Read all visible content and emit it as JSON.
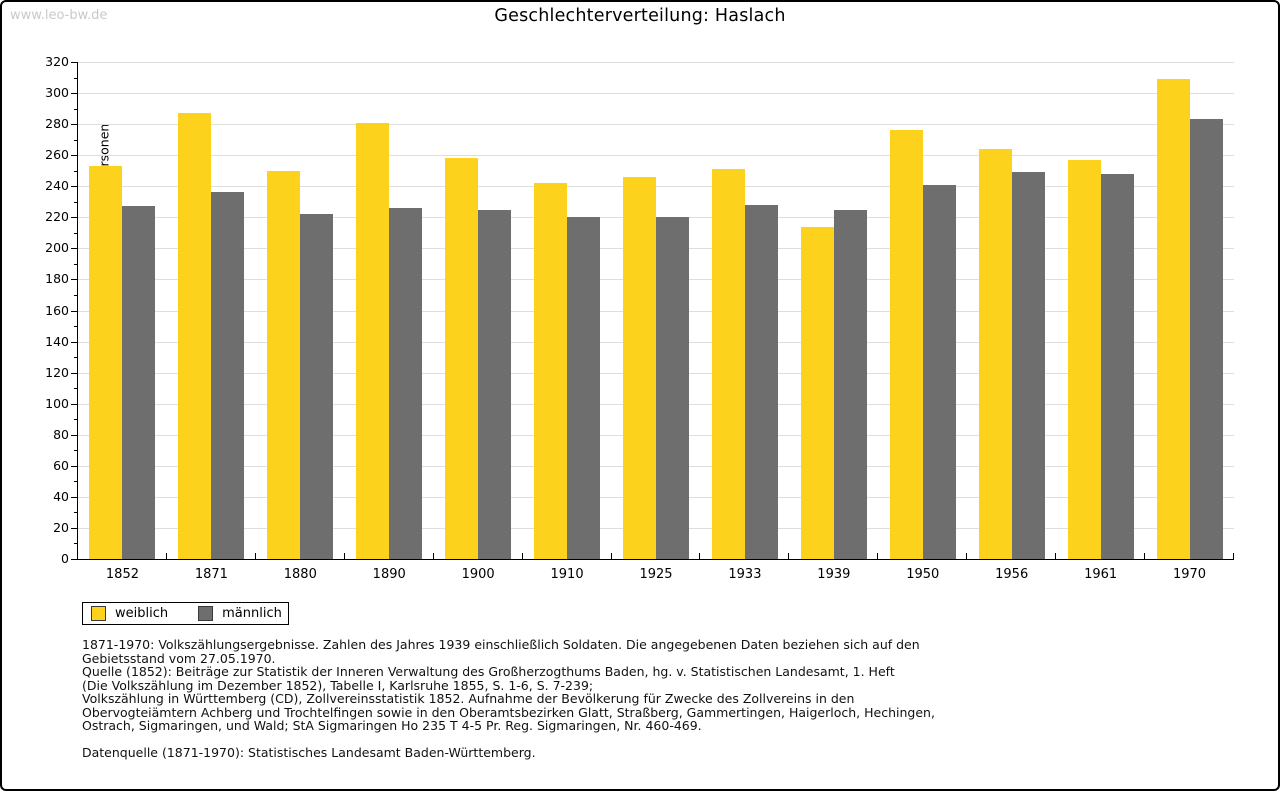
{
  "watermark": "www.leo-bw.de",
  "title": "Geschlechterverteilung: Haslach",
  "chart_data": {
    "type": "bar",
    "title": "Geschlechterverteilung: Haslach",
    "xlabel": "",
    "ylabel": "Anzahl Personen",
    "categories": [
      "1852",
      "1871",
      "1880",
      "1890",
      "1900",
      "1910",
      "1925",
      "1933",
      "1939",
      "1950",
      "1956",
      "1961",
      "1970"
    ],
    "series": [
      {
        "name": "weiblich",
        "color": "#FCD21C",
        "values": [
          253,
          287,
          250,
          281,
          258,
          242,
          246,
          251,
          214,
          276,
          264,
          257,
          309
        ]
      },
      {
        "name": "männlich",
        "color": "#6E6E6E",
        "values": [
          227,
          236,
          222,
          226,
          225,
          220,
          220,
          228,
          225,
          241,
          249,
          248,
          283
        ]
      }
    ],
    "ylim": [
      0,
      320
    ],
    "ytick_step": 20,
    "yminor_step": 10,
    "grid": true,
    "legend_position": "bottom-left-below"
  },
  "colors": {
    "weiblich": "#FCD21C",
    "maennlich": "#6E6E6E",
    "gridline": "#DEDEDE",
    "axis": "#000000",
    "watermark": "#C9C9C9"
  },
  "footer": {
    "lines": [
      "1871-1970: Volkszählungsergebnisse. Zahlen des Jahres 1939 einschließlich Soldaten. Die angegebenen Daten beziehen sich auf den",
      "Gebietsstand vom 27.05.1970.",
      "Quelle (1852): Beiträge zur Statistik der Inneren Verwaltung des Großherzogthums Baden, hg. v. Statistischen Landesamt, 1. Heft",
      "(Die Volkszählung im Dezember 1852), Tabelle I, Karlsruhe 1855, S. 1-6, S. 7-239;",
      "Volkszählung in Württemberg (CD), Zollvereinsstatistik 1852. Aufnahme der Bevölkerung für Zwecke des Zollvereins in den",
      "Obervogteiämtern Achberg und Trochtelfingen sowie in den Oberamtsbezirken Glatt, Straßberg, Gammertingen, Haigerloch, Hechingen,",
      "Ostrach, Sigmaringen, und Wald; StA Sigmaringen Ho 235 T 4-5 Pr. Reg. Sigmaringen, Nr. 460-469."
    ],
    "datasource": "Datenquelle (1871-1970): Statistisches Landesamt Baden-Württemberg."
  }
}
